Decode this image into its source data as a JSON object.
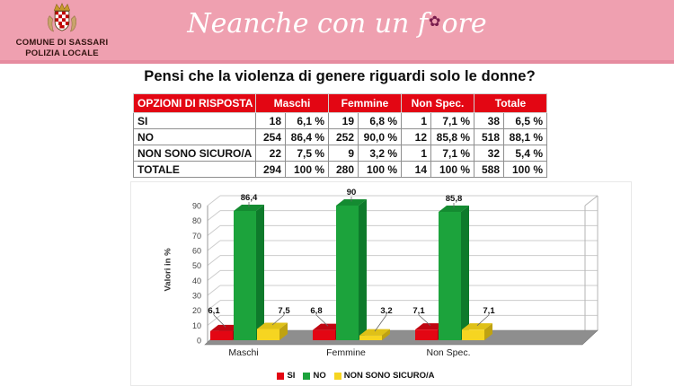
{
  "header": {
    "bg_color": "#EFA0B0",
    "org_line1": "COMUNE DI SASSARI",
    "org_line2": "POLIZIA LOCALE",
    "title_prefix": "Neanche con un f",
    "flower_icon": "✿",
    "title_suffix": "ore"
  },
  "question": "Pensi che la violenza di genere riguardi solo le donne?",
  "table": {
    "header_bg": "#E30613",
    "corner_label": "OPZIONI DI RISPOSTA",
    "group_headers": [
      "Maschi",
      "Femmine",
      "Non Spec.",
      "Totale"
    ],
    "rows": [
      {
        "label": "SI",
        "cells": [
          "18",
          "6,1 %",
          "19",
          "6,8 %",
          "1",
          "7,1 %",
          "38",
          "6,5 %"
        ]
      },
      {
        "label": "NO",
        "cells": [
          "254",
          "86,4 %",
          "252",
          "90,0 %",
          "12",
          "85,8 %",
          "518",
          "88,1 %"
        ]
      },
      {
        "label": "NON SONO SICURO/A",
        "cells": [
          "22",
          "7,5 %",
          "9",
          "3,2 %",
          "1",
          "7,1 %",
          "32",
          "5,4 %"
        ]
      },
      {
        "label": "TOTALE",
        "cells": [
          "294",
          "100 %",
          "280",
          "100 %",
          "14",
          "100 %",
          "588",
          "100 %"
        ]
      }
    ]
  },
  "chart_data": {
    "type": "bar",
    "style": "3d-column",
    "title": "",
    "xlabel": "",
    "ylabel": "Valori in %",
    "ylim": [
      0,
      90
    ],
    "ytick_step": 10,
    "grid": true,
    "legend_position": "bottom",
    "categories": [
      "Maschi",
      "Femmine",
      "Non Spec."
    ],
    "series": [
      {
        "name": "SI",
        "color": "#E30613",
        "color_side": "#9E040D",
        "color_top": "#C00511",
        "values": [
          6.1,
          6.8,
          7.1
        ],
        "labels": [
          "6,1",
          "6,8",
          "7,1"
        ]
      },
      {
        "name": "NO",
        "color": "#1CA33C",
        "color_side": "#0E7A2B",
        "color_top": "#148B31",
        "values": [
          86.4,
          90,
          85.8
        ],
        "labels": [
          "86,4",
          "90",
          "85,8"
        ]
      },
      {
        "name": "NON SONO SICURO/A",
        "color": "#F6D521",
        "color_side": "#BFA211",
        "color_top": "#DFC117",
        "values": [
          7.5,
          3.2,
          7.1
        ],
        "labels": [
          "7,5",
          "3,2",
          "7,1"
        ]
      }
    ]
  }
}
